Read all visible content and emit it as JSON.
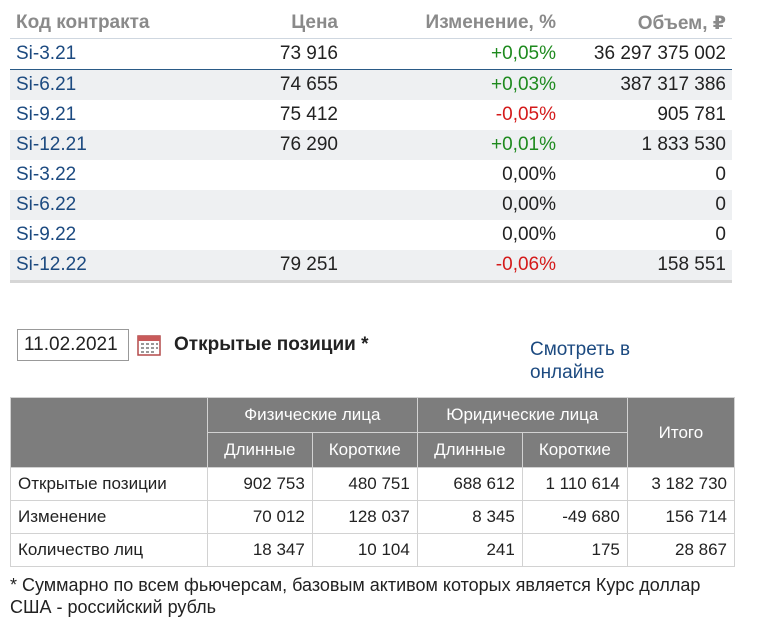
{
  "contracts_table": {
    "headers": {
      "name": "Код контракта",
      "price": "Цена",
      "change": "Изменение, %",
      "volume": "Объем, ₽"
    },
    "rows": [
      {
        "name": "Si-3.21",
        "price": "73 916",
        "change": "+0,05%",
        "change_sign": "pos",
        "volume": "36 297 375 002"
      },
      {
        "name": "Si-6.21",
        "price": "74 655",
        "change": "+0,03%",
        "change_sign": "pos",
        "volume": "387 317 386"
      },
      {
        "name": "Si-9.21",
        "price": "75 412",
        "change": "-0,05%",
        "change_sign": "neg",
        "volume": "905 781"
      },
      {
        "name": "Si-12.21",
        "price": "76 290",
        "change": "+0,01%",
        "change_sign": "pos",
        "volume": "1 833 530"
      },
      {
        "name": "Si-3.22",
        "price": "",
        "change": "0,00%",
        "change_sign": "zero",
        "volume": "0"
      },
      {
        "name": "Si-6.22",
        "price": "",
        "change": "0,00%",
        "change_sign": "zero",
        "volume": "0"
      },
      {
        "name": "Si-9.22",
        "price": "",
        "change": "0,00%",
        "change_sign": "zero",
        "volume": "0"
      },
      {
        "name": "Si-12.22",
        "price": "79 251",
        "change": "-0,06%",
        "change_sign": "neg",
        "volume": "158 551"
      }
    ]
  },
  "controls": {
    "date_value": "11.02.2021",
    "calendar_icon": "calendar-icon",
    "section_title": "Открытые позиции *",
    "online_link": "Смотреть в онлайне"
  },
  "positions_table": {
    "group_individuals": "Физические лица",
    "group_legal": "Юридические лица",
    "total": "Итого",
    "long": "Длинные",
    "short": "Короткие",
    "rows": [
      {
        "label": "Открытые позиции",
        "ind_long": "902 753",
        "ind_short": "480 751",
        "leg_long": "688 612",
        "leg_short": "1 110 614",
        "total": "3 182 730"
      },
      {
        "label": "Изменение",
        "ind_long": "70 012",
        "ind_short": "128 037",
        "leg_long": "8 345",
        "leg_short": "-49 680",
        "total": "156 714"
      },
      {
        "label": "Количество лиц",
        "ind_long": "18 347",
        "ind_short": "10 104",
        "leg_long": "241",
        "leg_short": "175",
        "total": "28 867"
      }
    ]
  },
  "footnote": "* Суммарно по всем фьючерсам, базовым активом которых является Курс доллар США - российский рубль",
  "colors": {
    "link": "#1c4a80",
    "positive": "#1e8a1e",
    "negative": "#d41a1a",
    "header_bg": "#7d7d7d",
    "stripe": "#eef0f2"
  }
}
